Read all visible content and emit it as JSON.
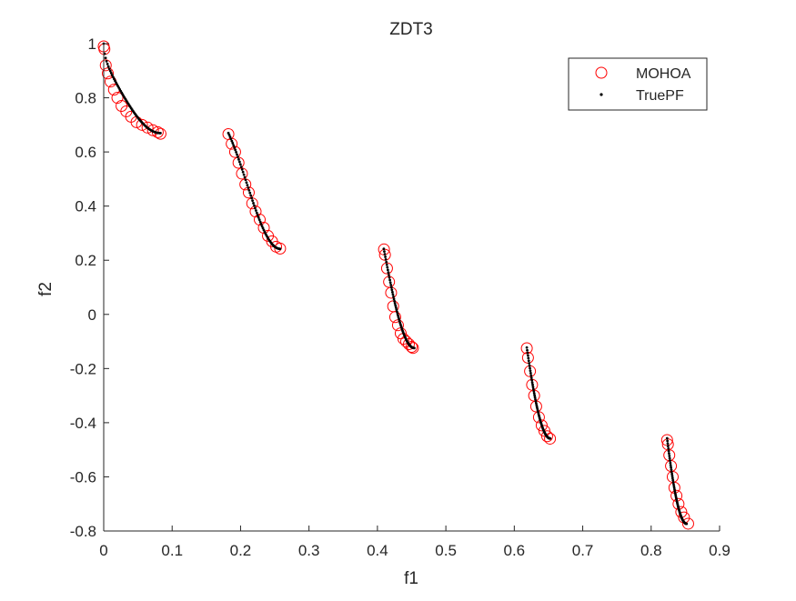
{
  "chart_data": {
    "type": "scatter",
    "title": "ZDT3",
    "xlabel": "f1",
    "ylabel": "f2",
    "xlim": [
      0,
      0.9
    ],
    "ylim": [
      -0.8,
      1.0
    ],
    "xticks": [
      "0",
      "0.1",
      "0.2",
      "0.3",
      "0.4",
      "0.5",
      "0.6",
      "0.7",
      "0.8",
      "0.9"
    ],
    "yticks": [
      "-0.8",
      "-0.6",
      "-0.4",
      "-0.2",
      "0",
      "0.2",
      "0.4",
      "0.6",
      "0.8",
      "1"
    ],
    "grid": false,
    "legend_position": "top-right",
    "series": [
      {
        "name": "MOHOA",
        "marker": "circle-open",
        "color": "#ff0000",
        "x": [
          0.0,
          0.001,
          0.003,
          0.006,
          0.01,
          0.015,
          0.02,
          0.026,
          0.033,
          0.04,
          0.048,
          0.056,
          0.064,
          0.072,
          0.079,
          0.083,
          0.1822,
          0.187,
          0.192,
          0.197,
          0.202,
          0.207,
          0.212,
          0.217,
          0.222,
          0.228,
          0.234,
          0.24,
          0.246,
          0.252,
          0.2578,
          0.4096,
          0.411,
          0.414,
          0.417,
          0.42,
          0.423,
          0.426,
          0.43,
          0.434,
          0.438,
          0.442,
          0.446,
          0.45,
          0.4519,
          0.6183,
          0.62,
          0.623,
          0.626,
          0.629,
          0.632,
          0.636,
          0.64,
          0.644,
          0.648,
          0.6522,
          0.8233,
          0.8245,
          0.8265,
          0.829,
          0.8315,
          0.834,
          0.837,
          0.84,
          0.844,
          0.848,
          0.8541
        ],
        "y": [
          0.99,
          0.98,
          0.92,
          0.89,
          0.86,
          0.83,
          0.8,
          0.77,
          0.75,
          0.73,
          0.71,
          0.7,
          0.69,
          0.68,
          0.673,
          0.667,
          0.666,
          0.63,
          0.6,
          0.56,
          0.52,
          0.48,
          0.45,
          0.41,
          0.38,
          0.35,
          0.32,
          0.29,
          0.27,
          0.25,
          0.243,
          0.24,
          0.22,
          0.17,
          0.12,
          0.08,
          0.03,
          -0.01,
          -0.04,
          -0.07,
          -0.09,
          -0.1,
          -0.11,
          -0.12,
          -0.124,
          -0.125,
          -0.16,
          -0.21,
          -0.26,
          -0.3,
          -0.34,
          -0.38,
          -0.41,
          -0.43,
          -0.45,
          -0.459,
          -0.464,
          -0.48,
          -0.52,
          -0.56,
          -0.6,
          -0.64,
          -0.67,
          -0.7,
          -0.73,
          -0.75,
          -0.773
        ]
      },
      {
        "name": "TruePF",
        "marker": "point",
        "color": "#000000",
        "segments": [
          {
            "f1": [
              0.0,
              0.083
            ]
          },
          {
            "f1": [
              0.1822,
              0.2578
            ]
          },
          {
            "f1": [
              0.4093,
              0.4539
            ]
          },
          {
            "f1": [
              0.6183,
              0.6525
            ]
          },
          {
            "f1": [
              0.8233,
              0.8518
            ]
          }
        ],
        "formula": "f2 = 1 - sqrt(f1) - f1*sin(10*pi*f1)"
      }
    ]
  }
}
